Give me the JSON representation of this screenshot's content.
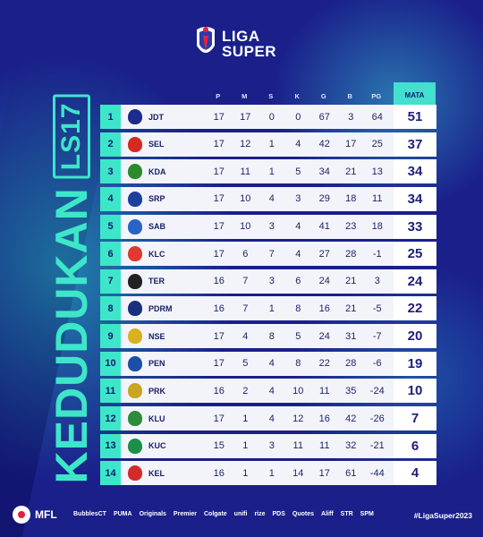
{
  "logo": {
    "line1": "LIGA",
    "line2": "SUPER"
  },
  "title": {
    "main": "KEDUDUKAN",
    "season": "LS17"
  },
  "headers": {
    "p": "P",
    "m": "M",
    "s": "S",
    "k": "K",
    "g": "G",
    "b": "B",
    "pg": "PG",
    "mata": "MATA"
  },
  "rows": [
    {
      "pos": "1",
      "club": "JDT",
      "p": "17",
      "m": "17",
      "s": "0",
      "k": "0",
      "g": "67",
      "b": "3",
      "pg": "64",
      "pts": "51",
      "color": "#1c2b8f"
    },
    {
      "pos": "2",
      "club": "SEL",
      "p": "17",
      "m": "12",
      "s": "1",
      "k": "4",
      "g": "42",
      "b": "17",
      "pg": "25",
      "pts": "37",
      "color": "#d42a20"
    },
    {
      "pos": "3",
      "club": "KDA",
      "p": "17",
      "m": "11",
      "s": "1",
      "k": "5",
      "g": "34",
      "b": "21",
      "pg": "13",
      "pts": "34",
      "color": "#2b8a2a"
    },
    {
      "pos": "4",
      "club": "SRP",
      "p": "17",
      "m": "10",
      "s": "4",
      "k": "3",
      "g": "29",
      "b": "18",
      "pg": "11",
      "pts": "34",
      "color": "#1d3fa0"
    },
    {
      "pos": "5",
      "club": "SAB",
      "p": "17",
      "m": "10",
      "s": "3",
      "k": "4",
      "g": "41",
      "b": "23",
      "pg": "18",
      "pts": "33",
      "color": "#2a63c8"
    },
    {
      "pos": "6",
      "club": "KLC",
      "p": "17",
      "m": "6",
      "s": "7",
      "k": "4",
      "g": "27",
      "b": "28",
      "pg": "-1",
      "pts": "25",
      "color": "#e03a2e"
    },
    {
      "pos": "7",
      "club": "TER",
      "p": "16",
      "m": "7",
      "s": "3",
      "k": "6",
      "g": "24",
      "b": "21",
      "pg": "3",
      "pts": "24",
      "color": "#222222"
    },
    {
      "pos": "8",
      "club": "PDRM",
      "p": "16",
      "m": "7",
      "s": "1",
      "k": "8",
      "g": "16",
      "b": "21",
      "pg": "-5",
      "pts": "22",
      "color": "#1b2f80"
    },
    {
      "pos": "9",
      "club": "NSE",
      "p": "17",
      "m": "4",
      "s": "8",
      "k": "5",
      "g": "24",
      "b": "31",
      "pg": "-7",
      "pts": "20",
      "color": "#d8b020"
    },
    {
      "pos": "10",
      "club": "PEN",
      "p": "17",
      "m": "5",
      "s": "4",
      "k": "8",
      "g": "22",
      "b": "28",
      "pg": "-6",
      "pts": "19",
      "color": "#1d4fa8"
    },
    {
      "pos": "11",
      "club": "PRK",
      "p": "16",
      "m": "2",
      "s": "4",
      "k": "10",
      "g": "11",
      "b": "35",
      "pg": "-24",
      "pts": "10",
      "color": "#c9a520"
    },
    {
      "pos": "12",
      "club": "KLU",
      "p": "17",
      "m": "1",
      "s": "4",
      "k": "12",
      "g": "16",
      "b": "42",
      "pg": "-26",
      "pts": "7",
      "color": "#2e8b3a"
    },
    {
      "pos": "13",
      "club": "KUC",
      "p": "15",
      "m": "1",
      "s": "3",
      "k": "11",
      "g": "11",
      "b": "32",
      "pg": "-21",
      "pts": "6",
      "color": "#1d8f4a"
    },
    {
      "pos": "14",
      "club": "KEL",
      "p": "16",
      "m": "1",
      "s": "1",
      "k": "14",
      "g": "17",
      "b": "61",
      "pg": "-44",
      "pts": "4",
      "color": "#d42a2a"
    }
  ],
  "footer": {
    "mfl": "MFL",
    "sponsors": [
      "BubblesCT",
      "PUMA",
      "Originals",
      "Premier",
      "Colgate",
      "unifi",
      "rize",
      "PDS",
      "Quotes",
      "Aliff",
      "STR",
      "SPM"
    ],
    "hashtag": "#LigaSuper2023"
  }
}
